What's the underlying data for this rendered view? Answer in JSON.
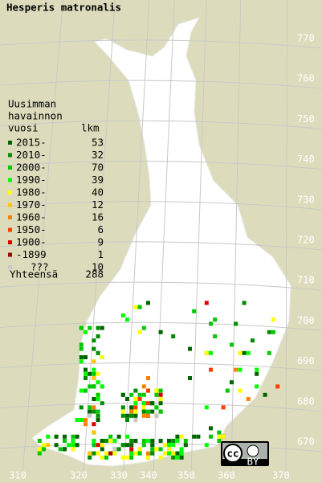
{
  "title": "Hesperis matronalis",
  "legend": {
    "heading": [
      "Uusimman",
      "havainnon"
    ],
    "column_year": "vuosi",
    "column_count": "lkm",
    "rows": [
      {
        "label": "2015-",
        "count": 53,
        "color": "#006400"
      },
      {
        "label": "2010-",
        "count": 32,
        "color": "#008c00"
      },
      {
        "label": "2000-",
        "count": 70,
        "color": "#00c800"
      },
      {
        "label": "1990-",
        "count": 39,
        "color": "#00ff00"
      },
      {
        "label": "1980-",
        "count": 40,
        "color": "#ffff00"
      },
      {
        "label": "1970-",
        "count": 12,
        "color": "#ffc800"
      },
      {
        "label": "1960-",
        "count": 16,
        "color": "#ff8000"
      },
      {
        "label": "1950-",
        "count": 6,
        "color": "#ff3c00"
      },
      {
        "label": "1900-",
        "count": 9,
        "color": "#dc0000"
      },
      {
        "label": "-1899",
        "count": 1,
        "color": "#a00000"
      },
      {
        "label": "???",
        "count": 10,
        "color": "#c8c8c8"
      }
    ],
    "total_label": "Yhteensä",
    "total": 288
  },
  "grid_labels": {
    "north": [
      770,
      760,
      750,
      740,
      730,
      720,
      710,
      700,
      690,
      680,
      670
    ],
    "east": [
      310,
      320,
      330,
      340,
      350,
      360,
      370
    ]
  },
  "license_badge": "BY"
}
